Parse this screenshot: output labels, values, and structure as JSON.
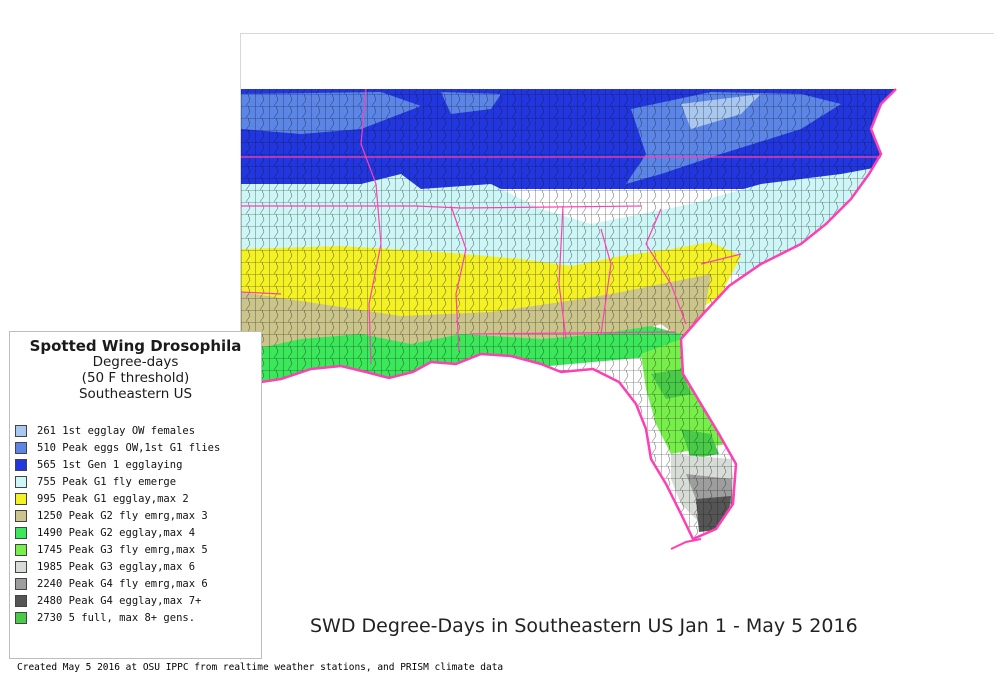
{
  "legend": {
    "title": "Spotted Wing Drosophila",
    "subtitle_lines": [
      "Degree-days",
      "(50 F threshold)",
      "Southeastern US"
    ],
    "items": [
      {
        "value": "261",
        "label": "1st egglay OW females",
        "color": "#a8c8f0"
      },
      {
        "value": "510",
        "label": "Peak eggs OW,1st G1 flies",
        "color": "#5b86e8"
      },
      {
        "value": "565",
        "label": "1st Gen 1 egglaying",
        "color": "#2236e0"
      },
      {
        "value": "755",
        "label": "Peak G1 fly emerge",
        "color": "#cdf6f6"
      },
      {
        "value": "995",
        "label": "Peak G1 egglay,max 2",
        "color": "#f4f225"
      },
      {
        "value": "1250",
        "label": "Peak G2 fly emrg,max 3",
        "color": "#cbc58c"
      },
      {
        "value": "1490",
        "label": "Peak G2 egglay,max 4",
        "color": "#3ae85a"
      },
      {
        "value": "1745",
        "label": "Peak G3 fly emrg,max 5",
        "color": "#77ef4a"
      },
      {
        "value": "1985",
        "label": "Peak G3 egglay,max 6",
        "color": "#d7dcd7"
      },
      {
        "value": "2240",
        "label": "Peak G4 fly emrg,max 6",
        "color": "#9e9e9e"
      },
      {
        "value": "2480",
        "label": "Peak G4 egglay,max 7+",
        "color": "#555555"
      },
      {
        "value": "2730",
        "label": "5 full, max 8+ gens.",
        "color": "#48cc48"
      }
    ]
  },
  "caption": "SWD Degree-Days in Southeastern US Jan 1 - May 5 2016",
  "credit": "Created May 5 2016 at OSU IPPC from  realtime weather stations, and PRISM climate data",
  "map": {
    "boundary_color": "#ff3fb4",
    "county_line_color": "#111111"
  }
}
